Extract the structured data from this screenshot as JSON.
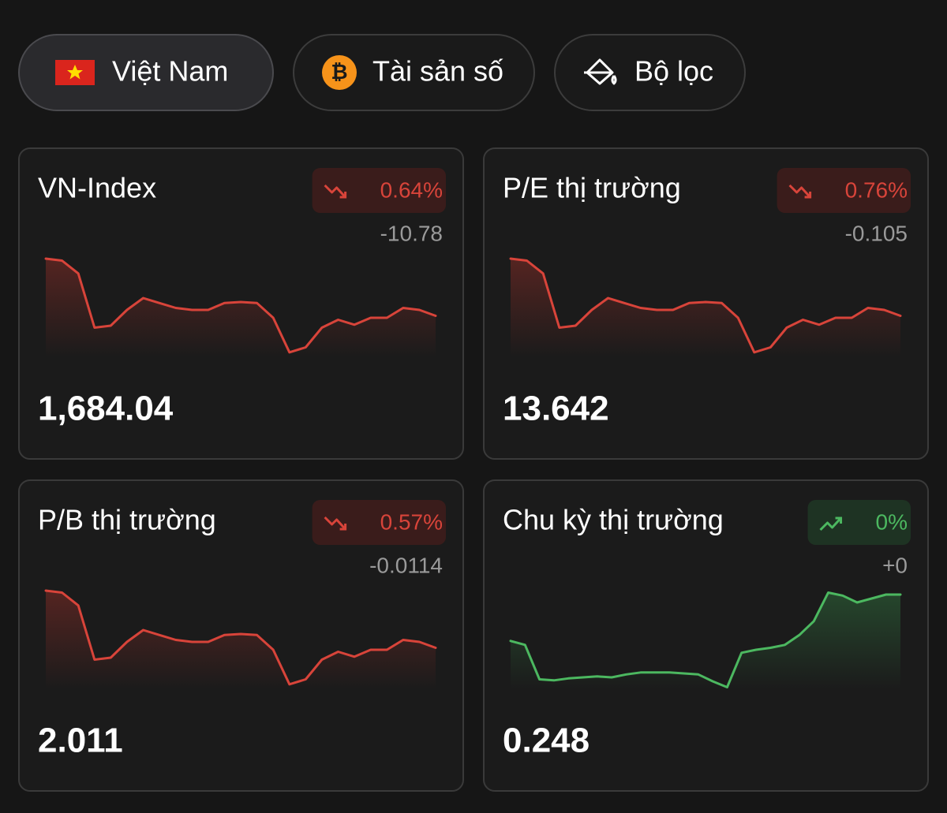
{
  "filters": [
    {
      "label": "Việt Nam",
      "active": true
    },
    {
      "label": "Tài sản số",
      "active": false
    },
    {
      "label": "Bộ lọc",
      "active": false
    }
  ],
  "cards": [
    {
      "title": "VN-Index",
      "change_percent": "0.64%",
      "change": "-10.78",
      "value": "1,684.04",
      "trend": "down",
      "sparkline": [
        100,
        98,
        85,
        30,
        32,
        48,
        60,
        55,
        50,
        48,
        48,
        55,
        56,
        55,
        40,
        5,
        10,
        30,
        38,
        33,
        40,
        40,
        50,
        48,
        42
      ]
    },
    {
      "title": "P/E thị trường",
      "change_percent": "0.76%",
      "change": "-0.105",
      "value": "13.642",
      "trend": "down",
      "sparkline": [
        100,
        98,
        85,
        30,
        32,
        48,
        60,
        55,
        50,
        48,
        48,
        55,
        56,
        55,
        40,
        5,
        10,
        30,
        38,
        33,
        40,
        40,
        50,
        48,
        42
      ]
    },
    {
      "title": "P/B thị trường",
      "change_percent": "0.57%",
      "change": "-0.0114",
      "value": "2.011",
      "trend": "down",
      "sparkline": [
        100,
        98,
        85,
        30,
        32,
        48,
        60,
        55,
        50,
        48,
        48,
        55,
        56,
        55,
        40,
        5,
        10,
        30,
        38,
        33,
        40,
        40,
        50,
        48,
        42
      ]
    },
    {
      "title": "Chu kỳ thị trường",
      "change_percent": "0%",
      "change": "+0",
      "value": "0.248",
      "trend": "up",
      "sparkline": [
        49,
        45,
        10,
        9,
        11,
        12,
        13,
        12,
        15,
        17,
        17,
        17,
        16,
        15,
        8,
        2,
        37,
        40,
        42,
        45,
        55,
        69,
        98,
        95,
        88,
        92,
        96,
        96
      ]
    }
  ]
}
